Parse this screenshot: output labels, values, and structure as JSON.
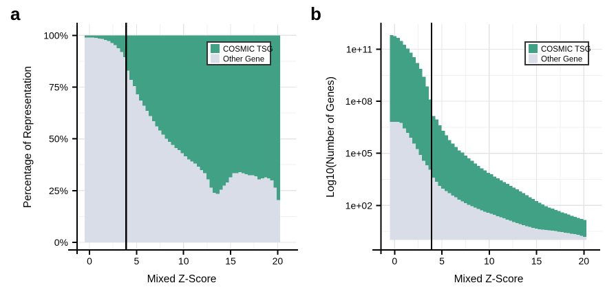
{
  "figure": {
    "background": "#FFFFFF"
  },
  "colors": {
    "cosmic": "#41A185",
    "other": "#D8DDE8",
    "grid_major": "#E4E4E6",
    "grid_minor": "#F1F1F3",
    "axis": "#000000",
    "threshold_line": "#000000",
    "legend_border": "#333333",
    "legend_fill": "#FFFFFF"
  },
  "legend": {
    "items": [
      {
        "label": "COSMIC TSG",
        "color_key": "cosmic"
      },
      {
        "label": "Other Gene",
        "color_key": "other"
      }
    ]
  },
  "chart_data": [
    {
      "panel_label": "a",
      "type": "bar",
      "subtype": "stacked-percent-histogram",
      "title": "",
      "xlabel": "Mixed Z-Score",
      "ylabel": "Percentage of Representation",
      "x_ticks": {
        "values": [
          0,
          5,
          10,
          15,
          20
        ],
        "labels": [
          "0",
          "5",
          "10",
          "15",
          "20"
        ]
      },
      "y_ticks": {
        "values": [
          0,
          25,
          50,
          75,
          100
        ],
        "labels": [
          "0%",
          "25%",
          "50%",
          "75%",
          "100%"
        ]
      },
      "y_unit": "percent",
      "ylim": [
        0,
        100
      ],
      "vline_x": 3.9,
      "bins": {
        "start": -0.5,
        "width": 0.34,
        "count": 61
      },
      "series": [
        {
          "name": "Other Gene",
          "color_key": "other",
          "tops": [
            99,
            99,
            99,
            98.7,
            98.5,
            98.2,
            97.8,
            97.2,
            96.3,
            95.2,
            93.8,
            92,
            89.5,
            83,
            78.5,
            75.5,
            71.5,
            68.5,
            66,
            63.5,
            61,
            58.5,
            56,
            54,
            52,
            50,
            48.5,
            47,
            45.5,
            44.5,
            43,
            41.5,
            40,
            39,
            38,
            36.5,
            35,
            33.5,
            30.5,
            26.5,
            24,
            23.5,
            25.5,
            27.5,
            29,
            31.5,
            33.5,
            33.5,
            34,
            33.5,
            33,
            32.5,
            32.5,
            32,
            30.5,
            31,
            31.5,
            31,
            30,
            26.5,
            20.5
          ]
        },
        {
          "name": "COSMIC TSG",
          "color_key": "cosmic",
          "tops": 100
        }
      ]
    },
    {
      "panel_label": "b",
      "type": "bar",
      "subtype": "stacked-log-histogram",
      "title": "",
      "xlabel": "Mixed Z-Score",
      "ylabel": "Log10(Number of Genes)",
      "x_ticks": {
        "values": [
          0,
          5,
          10,
          15,
          20
        ],
        "labels": [
          "0",
          "5",
          "10",
          "15",
          "20"
        ]
      },
      "y_ticks": {
        "values": [
          2,
          5,
          8,
          11
        ],
        "labels": [
          "1e+02",
          "1e+05",
          "1e+08",
          "1e+11"
        ]
      },
      "y_unit": "log10",
      "ylim_log10": [
        0,
        12.4
      ],
      "vline_x": 3.9,
      "bins": {
        "start": -0.5,
        "width": 0.34,
        "count": 61
      },
      "series": [
        {
          "name": "Other Gene",
          "color_key": "other",
          "tops": [
            6.82,
            6.82,
            6.82,
            6.76,
            6.43,
            6.17,
            5.9,
            5.57,
            5.24,
            4.91,
            4.58,
            4.31,
            4.05,
            3.59,
            3.36,
            3.12,
            2.96,
            2.83,
            2.7,
            2.57,
            2.46,
            2.33,
            2.24,
            2.13,
            2.04,
            1.96,
            1.87,
            1.8,
            1.71,
            1.64,
            1.58,
            1.52,
            1.45,
            1.38,
            1.31,
            1.25,
            1.18,
            1.11,
            1.04,
            0.98,
            0.92,
            0.86,
            0.81,
            0.76,
            0.71,
            0.66,
            0.62,
            0.6,
            0.59,
            0.57,
            0.55,
            0.52,
            0.49,
            0.46,
            0.43,
            0.4,
            0.37,
            0.34,
            0.3,
            0.25,
            0.18
          ]
        },
        {
          "name": "COSMIC TSG",
          "color_key": "cosmic",
          "tops": [
            11.82,
            11.75,
            11.66,
            11.48,
            11.26,
            11.03,
            10.8,
            10.54,
            10.2,
            9.87,
            9.42,
            8.85,
            8.1,
            7.16,
            6.96,
            6.62,
            6.3,
            6.03,
            5.77,
            5.57,
            5.37,
            5.17,
            5.04,
            4.87,
            4.71,
            4.58,
            4.42,
            4.27,
            4.14,
            4.01,
            3.88,
            3.79,
            3.65,
            3.55,
            3.45,
            3.35,
            3.25,
            3.13,
            3.02,
            2.92,
            2.8,
            2.7,
            2.58,
            2.47,
            2.36,
            2.25,
            2.15,
            2.05,
            1.96,
            1.88,
            1.81,
            1.74,
            1.67,
            1.6,
            1.53,
            1.47,
            1.4,
            1.34,
            1.28,
            1.22,
            1.15
          ]
        }
      ]
    }
  ]
}
